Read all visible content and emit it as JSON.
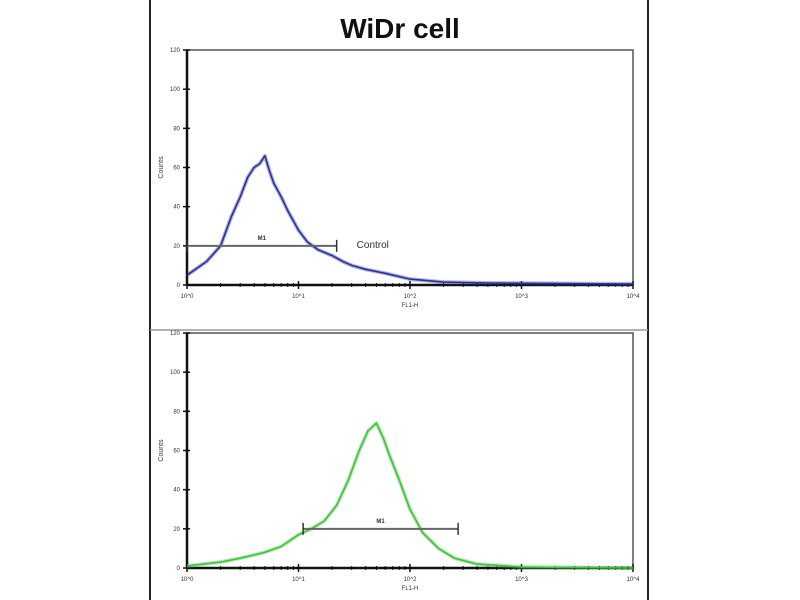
{
  "title": "WiDr cell",
  "chart_data": [
    {
      "type": "line",
      "title": "",
      "xlabel": "FL1-H",
      "ylabel": "Counts",
      "xscale": "log",
      "xlim": [
        1,
        10000
      ],
      "ylim": [
        0,
        120
      ],
      "xticks": [
        "10^0",
        "10^1",
        "10^2",
        "10^3",
        "10^4"
      ],
      "yticks": [
        "0",
        "20",
        "40",
        "60",
        "80",
        "100",
        "120"
      ],
      "color": "#2a2f9c",
      "grid": false,
      "gate": {
        "label": "M1",
        "x": [
          1,
          22
        ],
        "y": 20
      },
      "annotation": "Control",
      "series": [
        {
          "x": [
            1,
            1.5,
            2,
            2.5,
            3,
            3.5,
            4,
            4.5,
            5,
            5.5,
            6,
            7,
            8,
            10,
            12,
            15,
            20,
            25,
            30,
            40,
            60,
            100,
            200,
            500,
            10000
          ],
          "y": [
            5,
            12,
            20,
            35,
            45,
            55,
            60,
            62,
            66,
            58,
            52,
            45,
            38,
            28,
            22,
            18,
            15,
            12,
            10,
            8,
            6,
            3,
            1.5,
            1,
            0.5
          ]
        }
      ]
    },
    {
      "type": "line",
      "title": "",
      "xlabel": "FL1-H",
      "ylabel": "Counts",
      "xscale": "log",
      "xlim": [
        1,
        10000
      ],
      "ylim": [
        0,
        120
      ],
      "xticks": [
        "10^0",
        "10^1",
        "10^2",
        "10^3",
        "10^4"
      ],
      "yticks": [
        "0",
        "20",
        "40",
        "60",
        "80",
        "100",
        "120"
      ],
      "color": "#3fc13a",
      "grid": false,
      "gate": {
        "label": "M1",
        "x": [
          11,
          270
        ],
        "y": 20
      },
      "series": [
        {
          "x": [
            1,
            2,
            3,
            5,
            7,
            10,
            13,
            17,
            22,
            28,
            35,
            42,
            50,
            58,
            65,
            80,
            100,
            130,
            180,
            250,
            400,
            1000,
            10000
          ],
          "y": [
            1,
            3,
            5,
            8,
            11,
            17,
            20,
            24,
            32,
            45,
            60,
            70,
            74,
            66,
            58,
            45,
            30,
            18,
            10,
            5,
            2,
            0.5,
            0
          ]
        }
      ]
    }
  ]
}
